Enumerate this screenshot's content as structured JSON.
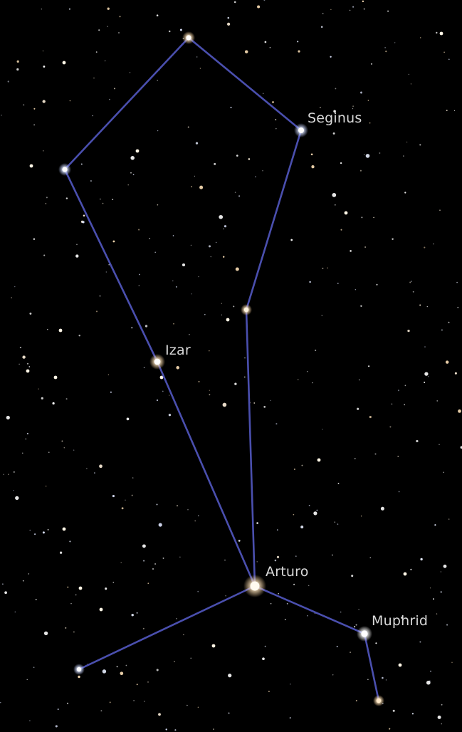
{
  "sky": {
    "background_color": "#000000",
    "line_color": "#4a4fae",
    "label_color": "#d9d9d9"
  },
  "labels": {
    "seginus": "Seginus",
    "izar": "Izar",
    "arturo": "Arturo",
    "muphrid": "Muphrid"
  }
}
